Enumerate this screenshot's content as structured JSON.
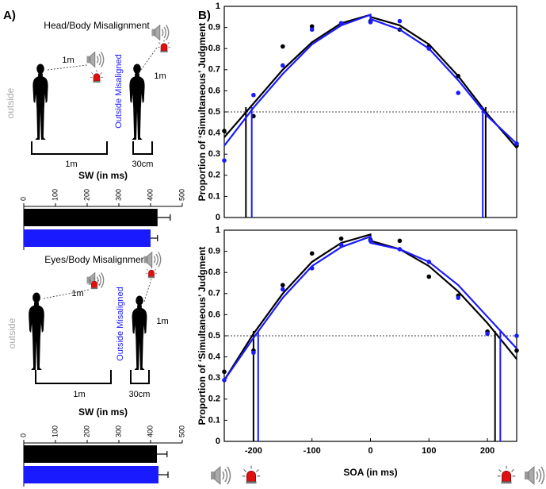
{
  "panels": [
    "A)",
    "B)"
  ],
  "diagrams": [
    {
      "title": "Head/Body Misalignment",
      "condition_left": "outside",
      "condition_right": "Outside Misaligned",
      "distance_left": "1m",
      "distance_right": "1m",
      "width_left": "1m",
      "width_right": "30cm"
    },
    {
      "title": "Eyes/Body Misalignment",
      "condition_left": "outside",
      "condition_right": "Outside Misaligned",
      "distance_left": "1m",
      "distance_right": "1m",
      "width_left": "1m",
      "width_right": "30cm"
    }
  ],
  "chart_data": [
    {
      "type": "bar",
      "orientation": "horizontal",
      "title": "SW (in ms)",
      "categories": [
        null,
        null
      ],
      "values": [
        422,
        400
      ],
      "errors": [
        40,
        22
      ],
      "colors": [
        "#000000",
        "#1a1aff"
      ],
      "xlim": [
        0,
        500
      ],
      "xticks": [
        0,
        100,
        200,
        300,
        400,
        500
      ]
    },
    {
      "type": "bar",
      "orientation": "horizontal",
      "title": "SW (in ms)",
      "categories": [
        null,
        null
      ],
      "values": [
        420,
        425
      ],
      "errors": [
        32,
        30
      ],
      "colors": [
        "#000000",
        "#1a1aff"
      ],
      "xlim": [
        0,
        500
      ],
      "xticks": [
        0,
        100,
        200,
        300,
        400,
        500
      ]
    },
    {
      "type": "line",
      "y_label": "Proportion of ‘Simultaneous’ Judgment",
      "xlim": [
        -250,
        250
      ],
      "ylim": [
        0,
        1
      ],
      "yticks": [
        0,
        0.1,
        0.2,
        0.3,
        0.4,
        0.5,
        0.6,
        0.7,
        0.8,
        0.9,
        1
      ],
      "reference": 0.5,
      "legend": "upper right",
      "series": [
        {
          "name": "OUTSIDE",
          "color": "#000000",
          "x": [
            -250,
            -200,
            -150,
            -100,
            -50,
            0,
            50,
            100,
            150,
            250
          ],
          "values": [
            0.41,
            0.48,
            0.81,
            0.905,
            0.92,
            0.93,
            0.89,
            0.81,
            0.67,
            0.34
          ],
          "fit_x": [
            -250,
            -200,
            -150,
            -100,
            -50,
            0,
            0,
            50,
            100,
            150,
            200,
            250
          ],
          "fit_values": [
            0.38,
            0.54,
            0.7,
            0.83,
            0.92,
            0.96,
            0.95,
            0.91,
            0.82,
            0.67,
            0.49,
            0.33
          ],
          "thresholds": [
            -213,
            197
          ]
        },
        {
          "name": "OUTSIDE MISALIGNED",
          "color": "#1a1aff",
          "x": [
            -250,
            -200,
            -150,
            -100,
            -50,
            0,
            50,
            100,
            150,
            250
          ],
          "values": [
            0.27,
            0.58,
            0.72,
            0.89,
            0.92,
            0.925,
            0.93,
            0.8,
            0.59,
            0.35
          ],
          "fit_x": [
            -250,
            -200,
            -150,
            -100,
            -50,
            0,
            0,
            50,
            100,
            150,
            200,
            250
          ],
          "fit_values": [
            0.34,
            0.52,
            0.68,
            0.82,
            0.91,
            0.96,
            0.94,
            0.89,
            0.8,
            0.65,
            0.48,
            0.35
          ],
          "thresholds": [
            -203,
            192
          ]
        }
      ]
    },
    {
      "type": "line",
      "y_label": "Proportion of ‘Simultaneous’ Judgment",
      "x_label": "SOA (in ms)",
      "xlim": [
        -250,
        250
      ],
      "ylim": [
        0,
        1
      ],
      "xticks": [
        -200,
        -100,
        0,
        100,
        200
      ],
      "yticks": [
        0,
        0.1,
        0.2,
        0.3,
        0.4,
        0.5,
        0.6,
        0.7,
        0.8,
        0.9,
        1
      ],
      "reference": 0.5,
      "series": [
        {
          "color": "#000000",
          "x": [
            -250,
            -200,
            -150,
            -100,
            -50,
            0,
            50,
            100,
            150,
            200,
            250
          ],
          "values": [
            0.33,
            0.43,
            0.74,
            0.89,
            0.96,
            0.955,
            0.95,
            0.78,
            0.69,
            0.52,
            0.43
          ],
          "fit_x": [
            -250,
            -200,
            -150,
            -100,
            -50,
            0,
            0,
            50,
            100,
            150,
            200,
            250
          ],
          "fit_values": [
            0.29,
            0.51,
            0.7,
            0.85,
            0.94,
            0.98,
            0.95,
            0.91,
            0.83,
            0.71,
            0.56,
            0.39
          ],
          "thresholds": [
            -200,
            213
          ]
        },
        {
          "color": "#1a1aff",
          "x": [
            -250,
            -200,
            -150,
            -100,
            -50,
            0,
            50,
            100,
            150,
            200,
            250
          ],
          "values": [
            0.29,
            0.42,
            0.72,
            0.82,
            0.93,
            0.95,
            0.91,
            0.85,
            0.68,
            0.51,
            0.5
          ],
          "fit_x": [
            -250,
            -200,
            -150,
            -100,
            -50,
            0,
            0,
            50,
            100,
            150,
            200,
            250
          ],
          "fit_values": [
            0.29,
            0.49,
            0.68,
            0.83,
            0.92,
            0.97,
            0.94,
            0.91,
            0.85,
            0.74,
            0.59,
            0.44
          ],
          "thresholds": [
            -192,
            222
          ]
        }
      ]
    }
  ]
}
